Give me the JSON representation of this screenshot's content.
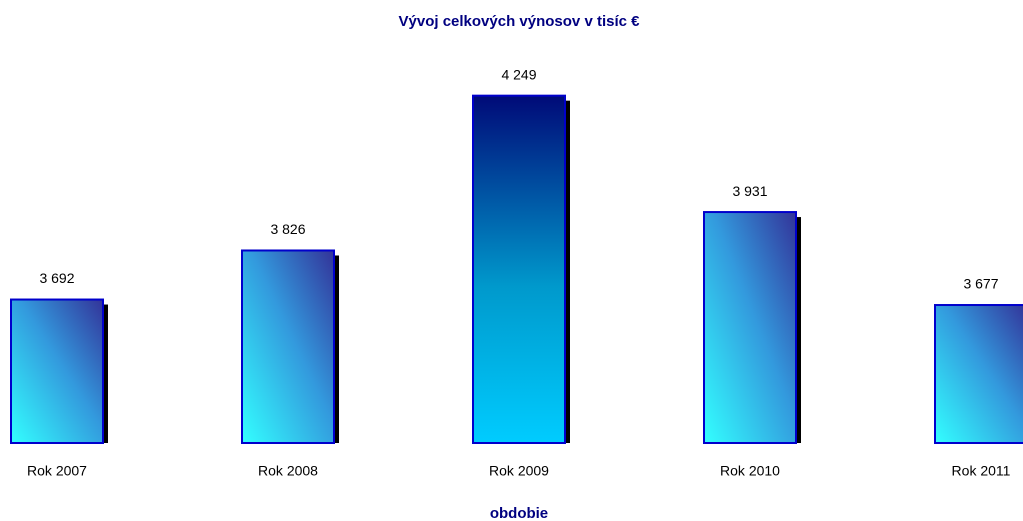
{
  "chart_data": {
    "type": "bar",
    "title": "Vývoj celkových výnosov v tisíc €",
    "x_label": "obdobie",
    "categories": [
      "Rok 2007",
      "Rok 2008",
      "Rok 2009",
      "Rok 2010",
      "Rok 2011"
    ],
    "values": [
      3692,
      3826,
      4249,
      3931,
      3677
    ],
    "value_labels": [
      "3 692",
      "3 826",
      "4 249",
      "3 931",
      "3 677"
    ],
    "color": "#33ccff",
    "ylim": [
      3300,
      4300
    ]
  }
}
